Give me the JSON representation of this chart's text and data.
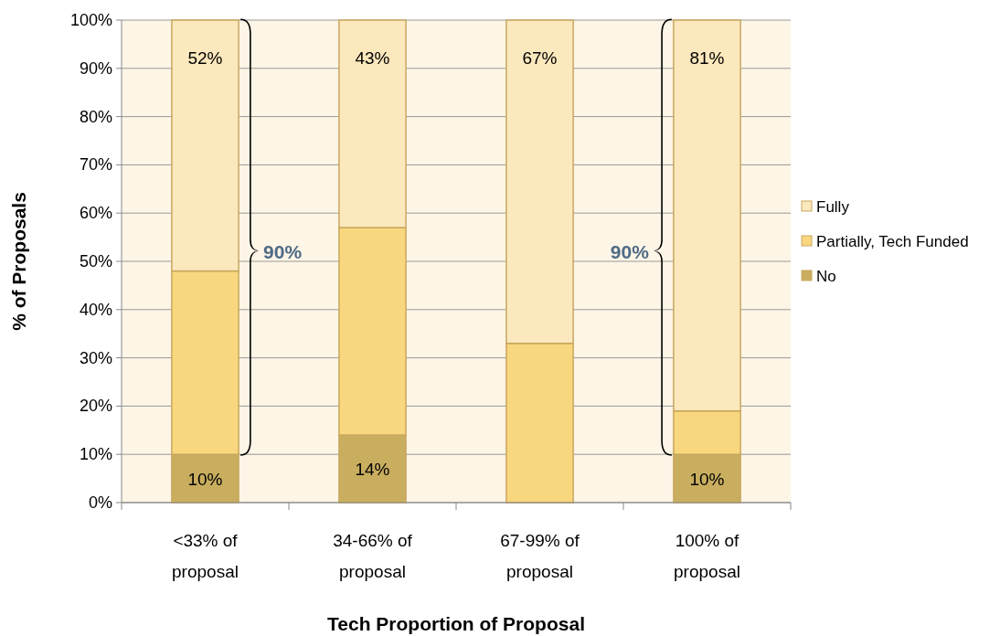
{
  "chart_data": {
    "type": "bar",
    "stacked": true,
    "xlabel": "Tech Proportion of Proposal",
    "ylabel": "% of Proposals",
    "categories": [
      "<33% of proposal",
      "34-66% of proposal",
      "67-99% of proposal",
      "100% of proposal"
    ],
    "series": [
      {
        "name": "No",
        "color": "#c9ae5f",
        "values": [
          10,
          14,
          0,
          10
        ],
        "value_labels": [
          "10%",
          "14%",
          null,
          "10%"
        ]
      },
      {
        "name": "Partially, Tech Funded",
        "color": "#f9d77e",
        "values": [
          38,
          43,
          33,
          9
        ],
        "value_labels": [
          null,
          null,
          null,
          null
        ]
      },
      {
        "name": "Fully",
        "color": "#fce8bd",
        "values": [
          52,
          43,
          67,
          81
        ],
        "value_labels": [
          "52%",
          "43%",
          "67%",
          "81%"
        ]
      }
    ],
    "ylim": [
      0,
      100
    ],
    "yticks": [
      {
        "value": 0,
        "label": "0%"
      },
      {
        "value": 10,
        "label": "10%"
      },
      {
        "value": 20,
        "label": "20%"
      },
      {
        "value": 30,
        "label": "30%"
      },
      {
        "value": 40,
        "label": "40%"
      },
      {
        "value": 50,
        "label": "50%"
      },
      {
        "value": 60,
        "label": "60%"
      },
      {
        "value": 70,
        "label": "70%"
      },
      {
        "value": 80,
        "label": "80%"
      },
      {
        "value": 90,
        "label": "90%"
      },
      {
        "value": 100,
        "label": "100%"
      }
    ],
    "grid": "y",
    "legend": "right",
    "annotations": [
      "90%",
      "90%"
    ]
  }
}
